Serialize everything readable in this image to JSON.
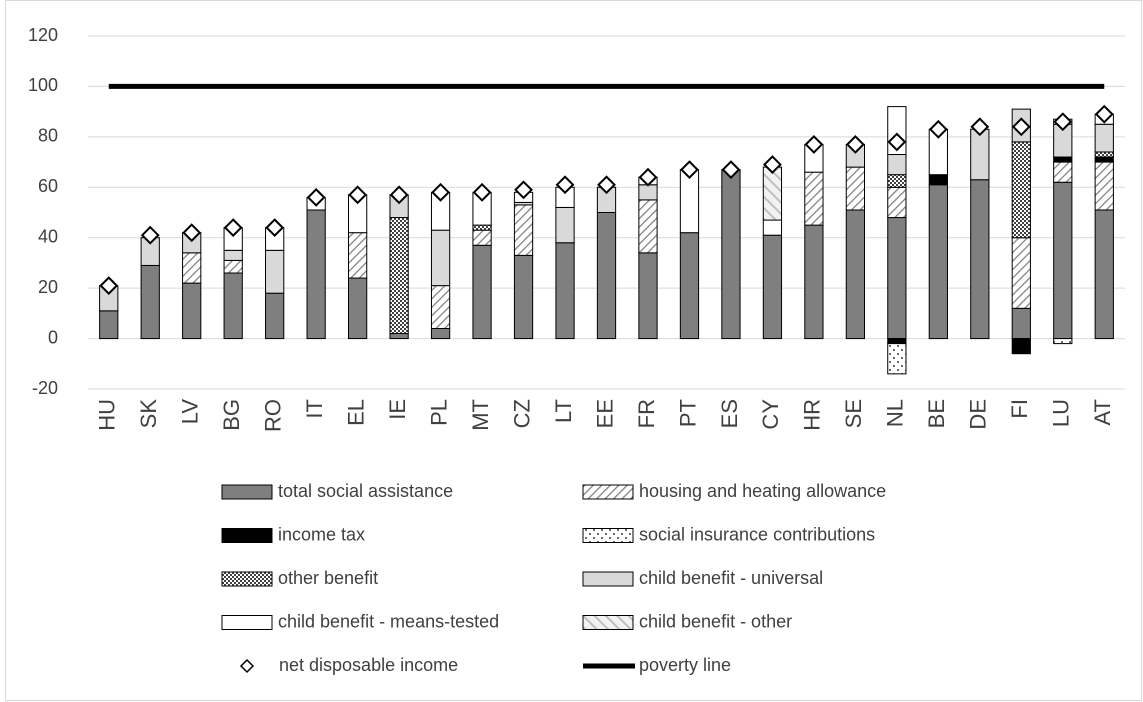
{
  "chart_data": {
    "type": "bar",
    "categories": [
      "HU",
      "SK",
      "LV",
      "BG",
      "RO",
      "IT",
      "EL",
      "IE",
      "PL",
      "MT",
      "CZ",
      "LT",
      "EE",
      "FR",
      "PT",
      "ES",
      "CY",
      "HR",
      "SE",
      "NL",
      "BE",
      "DE",
      "FI",
      "LU",
      "AT"
    ],
    "ylim": [
      -20,
      120
    ],
    "yticks": [
      -20,
      0,
      20,
      40,
      60,
      80,
      100,
      120
    ],
    "grid": true,
    "series": [
      {
        "name": "total social assistance",
        "color": "#7f7f7f",
        "pattern": "solid",
        "values": [
          11,
          29,
          22,
          26,
          18,
          51,
          24,
          2,
          4,
          37,
          33,
          38,
          50,
          34,
          42,
          67,
          41,
          45,
          51,
          48,
          61,
          63,
          12,
          62,
          51
        ]
      },
      {
        "name": "housing and heating allowance",
        "color": "#7f7f7f",
        "pattern": "diagonal",
        "values": [
          0,
          0,
          12,
          5,
          0,
          0,
          18,
          0,
          17,
          6,
          20,
          0,
          0,
          21,
          0,
          0,
          0,
          21,
          17,
          12,
          0,
          0,
          28,
          8,
          19
        ]
      },
      {
        "name": "income tax",
        "color": "#000000",
        "pattern": "solid",
        "values": [
          0,
          0,
          0,
          0,
          0,
          0,
          0,
          0,
          0,
          0,
          0,
          0,
          0,
          0,
          0,
          0,
          0,
          0,
          0,
          -2,
          4,
          0,
          -6,
          2,
          2
        ]
      },
      {
        "name": "social insurance contributions",
        "color": "#000000",
        "pattern": "dots",
        "values": [
          0,
          0,
          0,
          0,
          0,
          0,
          0,
          0,
          0,
          0,
          0,
          0,
          0,
          0,
          0,
          0,
          0,
          0,
          0,
          -12,
          0,
          0,
          0,
          -2,
          0
        ]
      },
      {
        "name": "other benefit",
        "color": "#404040",
        "pattern": "crosshatch",
        "values": [
          0,
          0,
          0,
          0,
          0,
          0,
          0,
          46,
          0,
          2,
          0,
          0,
          0,
          0,
          0,
          0,
          0,
          0,
          0,
          5,
          0,
          0,
          38,
          0,
          2
        ]
      },
      {
        "name": "child benefit - universal",
        "color": "#d9d9d9",
        "pattern": "solid",
        "values": [
          10,
          11,
          8,
          4,
          17,
          0,
          0,
          9,
          22,
          0,
          1,
          14,
          10,
          6,
          0,
          0,
          0,
          0,
          9,
          8,
          0,
          20,
          13,
          13,
          11
        ]
      },
      {
        "name": "child benefit - means-tested",
        "color": "#ffffff",
        "pattern": "solid",
        "values": [
          0,
          0,
          0,
          9,
          9,
          5,
          15,
          0,
          15,
          13,
          4,
          8,
          0,
          3,
          25,
          0,
          6,
          11,
          0,
          19,
          18,
          0,
          0,
          2,
          4
        ]
      },
      {
        "name": "child benefit - other",
        "color": "#bfbfbf",
        "pattern": "light-diagonal",
        "values": [
          0,
          0,
          0,
          0,
          0,
          0,
          0,
          0,
          0,
          0,
          0,
          0,
          0,
          0,
          0,
          0,
          21,
          0,
          0,
          0,
          0,
          0,
          0,
          0,
          0
        ]
      },
      {
        "name": "net disposable income",
        "color": "#000000",
        "kind": "diamond",
        "values": [
          21,
          41,
          42,
          44,
          44,
          56,
          57,
          57,
          58,
          58,
          59,
          61,
          61,
          64,
          67,
          67,
          69,
          77,
          77,
          78,
          83,
          84,
          84,
          86,
          89
        ]
      },
      {
        "name": "poverty line",
        "color": "#000000",
        "kind": "line",
        "values": [
          100,
          100,
          100,
          100,
          100,
          100,
          100,
          100,
          100,
          100,
          100,
          100,
          100,
          100,
          100,
          100,
          100,
          100,
          100,
          100,
          100,
          100,
          100,
          100,
          100
        ]
      }
    ]
  }
}
